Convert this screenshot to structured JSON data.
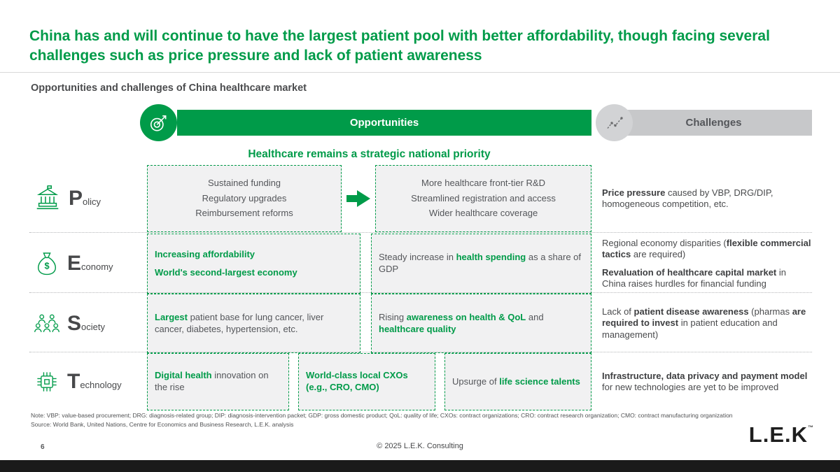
{
  "title": "China has and will continue to have the largest patient pool with better affordability, though facing several challenges such as price pressure and lack of patient awareness",
  "subtitle": "Opportunities and challenges of China healthcare market",
  "header": {
    "opportunities_label": "Opportunities",
    "challenges_label": "Challenges"
  },
  "banner": "Healthcare remains a strategic national priority",
  "colors": {
    "green": "#009B49",
    "gray_bar": "#C7C8CA",
    "gray_circle": "#D2D3D5",
    "dark_text": "#54565A",
    "box_fill": "#F1F1F2",
    "footer_bar": "#1A1A1A"
  },
  "icons": {
    "opportunities": "target-arrow-icon",
    "challenges": "line-chart-icon",
    "policy": "government-building-icon",
    "economy": "money-bag-icon",
    "society": "people-group-icon",
    "technology": "chip-icon",
    "flow": "arrow-right-icon"
  },
  "rows": [
    {
      "id": "policy",
      "letter": "P",
      "rest": "olicy",
      "boxes": [
        {
          "lines": [
            [
              {
                "t": "Sustained funding"
              }
            ],
            [
              {
                "t": "Regulatory upgrades"
              }
            ],
            [
              {
                "t": "Reimbursement reforms"
              }
            ]
          ]
        },
        {
          "lines": [
            [
              {
                "t": "More healthcare front-tier R&D"
              }
            ],
            [
              {
                "t": "Streamlined registration and access"
              }
            ],
            [
              {
                "t": "Wider healthcare coverage"
              }
            ]
          ]
        }
      ],
      "challenge": [
        [
          {
            "t": "Price pressure",
            "c": "b"
          },
          {
            "t": " caused by VBP, DRG/DIP, homogeneous competition, etc."
          }
        ]
      ]
    },
    {
      "id": "economy",
      "letter": "E",
      "rest": "conomy",
      "boxes": [
        {
          "lines": [
            [
              {
                "t": "Increasing affordability",
                "c": "gb"
              }
            ],
            [
              {
                "t": "World's second-largest economy",
                "c": "gb"
              }
            ]
          ]
        },
        {
          "lines": [
            [
              {
                "t": "Steady increase in "
              },
              {
                "t": "health spending",
                "c": "gb"
              },
              {
                "t": " as a share of GDP"
              }
            ]
          ]
        }
      ],
      "challenge": [
        [
          {
            "t": "Regional economy disparities ("
          },
          {
            "t": "flexible commercial tactics",
            "c": "b"
          },
          {
            "t": " are required)"
          }
        ],
        [
          {
            "t": "Revaluation of healthcare capital market",
            "c": "b"
          },
          {
            "t": " in China raises hurdles for financial funding"
          }
        ]
      ]
    },
    {
      "id": "society",
      "letter": "S",
      "rest": "ociety",
      "boxes": [
        {
          "lines": [
            [
              {
                "t": "Largest",
                "c": "gb"
              },
              {
                "t": " patient base for lung cancer, liver cancer, diabetes, hypertension, etc."
              }
            ]
          ]
        },
        {
          "lines": [
            [
              {
                "t": "Rising "
              },
              {
                "t": "awareness on health & QoL",
                "c": "gb"
              },
              {
                "t": " and "
              },
              {
                "t": "healthcare quality",
                "c": "gb"
              }
            ]
          ]
        }
      ],
      "challenge": [
        [
          {
            "t": "Lack of "
          },
          {
            "t": "patient disease awareness",
            "c": "b"
          },
          {
            "t": " (pharmas "
          },
          {
            "t": "are required to invest",
            "c": "b"
          },
          {
            "t": " in patient education and management)"
          }
        ]
      ]
    },
    {
      "id": "technology",
      "letter": "T",
      "rest": "echnology",
      "boxes": [
        {
          "lines": [
            [
              {
                "t": "Digital health",
                "c": "gb"
              },
              {
                "t": " innovation on the rise"
              }
            ]
          ]
        },
        {
          "lines": [
            [
              {
                "t": "World-class local CXOs (e.g., CRO, CMO)",
                "c": "gb"
              }
            ]
          ]
        },
        {
          "lines": [
            [
              {
                "t": "Upsurge of "
              },
              {
                "t": "life science talents",
                "c": "gb"
              }
            ]
          ]
        }
      ],
      "challenge": [
        [
          {
            "t": "Infrastructure, data privacy and payment model",
            "c": "b"
          },
          {
            "t": " for new technologies are yet to be improved"
          }
        ]
      ]
    }
  ],
  "note": "Note: VBP: value-based procurement; DRG: diagnosis-related group; DIP: diagnosis-intervention packet; GDP: gross domestic product; QoL: quality of life; CXOs: contract organizations; CRO: contract research organization; CMO: contract manufacturing organization",
  "source": "Source: World Bank, United Nations, Centre for Economics and Business Research, L.E.K. analysis",
  "footer": {
    "page_number": "6",
    "copyright": "© 2025 L.E.K. Consulting",
    "logo_text": "L.E.K",
    "logo_tm": "™"
  }
}
